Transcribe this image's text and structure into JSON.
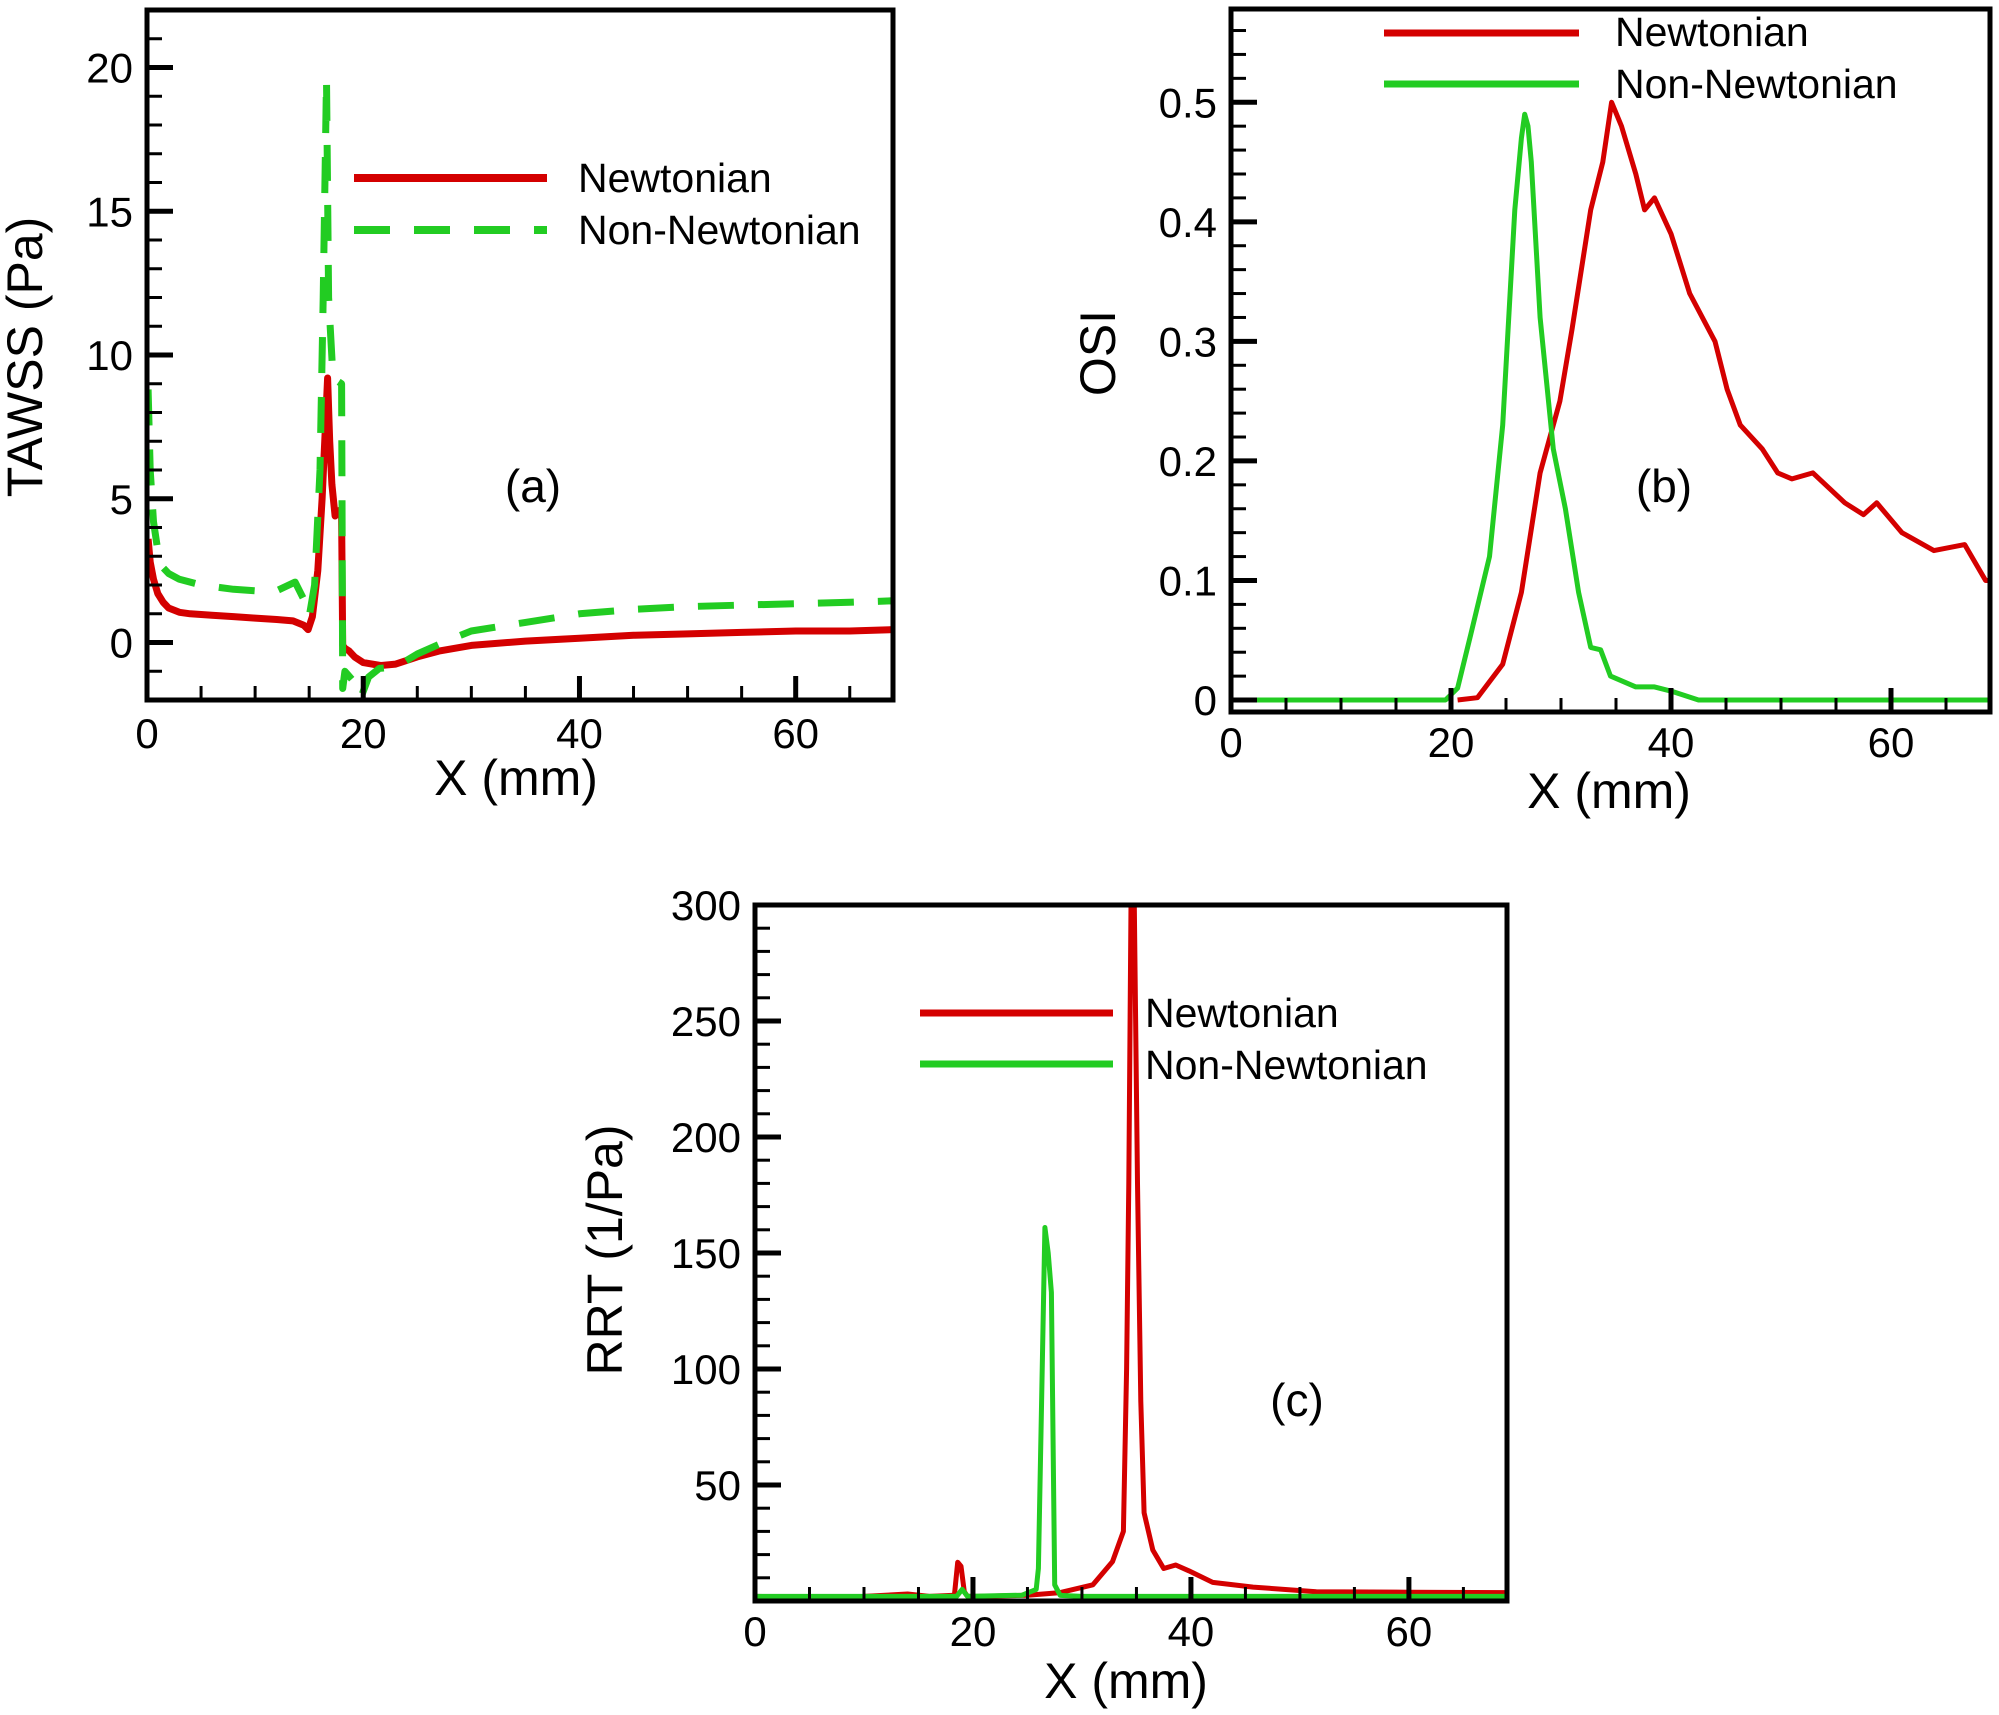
{
  "colors": {
    "newtonian": "#d40000",
    "non_newtonian": "#22cc22"
  },
  "chart_data": [
    {
      "id": "a",
      "type": "line",
      "panel_label": "(a)",
      "title": "",
      "xlabel": "X (mm)",
      "ylabel": "TAWSS (Pa)",
      "xlim": [
        0,
        69
      ],
      "ylim": [
        -2,
        22
      ],
      "xticks": [
        0,
        20,
        40,
        60
      ],
      "xtick_labels": [
        "0",
        "20",
        "40",
        "60"
      ],
      "x_minor_step": 5,
      "yticks": [
        0,
        5,
        10,
        15,
        20
      ],
      "ytick_labels": [
        "0",
        "5",
        "10",
        "15",
        "20"
      ],
      "y_minor_step": 1,
      "grid": false,
      "legend_position": "top-right",
      "series": [
        {
          "name": "Newtonian",
          "color_key": "newtonian",
          "style": "solid",
          "x": [
            0.1,
            0.3,
            0.6,
            1.0,
            1.5,
            2.0,
            3.0,
            4.0,
            6.0,
            8.0,
            10.0,
            12.0,
            13.5,
            14.5,
            14.9,
            15.3,
            15.8,
            16.2,
            16.5,
            16.7,
            16.9,
            17.1,
            17.4,
            17.8,
            18.0,
            18.1,
            18.3,
            18.7,
            19.2,
            20.0,
            21.6,
            23.0,
            25.0,
            27.0,
            30.0,
            35.0,
            40.0,
            45.0,
            50.0,
            55.0,
            60.0,
            65.0,
            69.0
          ],
          "y": [
            3.6,
            2.8,
            2.2,
            1.7,
            1.4,
            1.2,
            1.05,
            1.0,
            0.95,
            0.9,
            0.85,
            0.8,
            0.75,
            0.6,
            0.45,
            0.9,
            2.5,
            5.0,
            7.5,
            9.2,
            7.0,
            5.5,
            4.4,
            4.6,
            4.4,
            -0.1,
            -0.2,
            -0.3,
            -0.5,
            -0.7,
            -0.8,
            -0.75,
            -0.5,
            -0.3,
            -0.1,
            0.05,
            0.15,
            0.25,
            0.3,
            0.35,
            0.4,
            0.4,
            0.45
          ]
        },
        {
          "name": "Non-Newtonian",
          "color_key": "non_newtonian",
          "style": "dashed",
          "x": [
            0.1,
            0.3,
            0.6,
            1.0,
            1.5,
            2.0,
            3.0,
            5.0,
            8.0,
            10.0,
            12.0,
            13.7,
            14.5,
            15.0,
            15.5,
            16.0,
            16.3,
            16.6,
            16.8,
            17.2,
            17.6,
            18.0,
            18.1,
            18.3,
            19.0,
            19.8,
            20.5,
            21.5,
            23.0,
            25.0,
            28.0,
            30.0,
            35.0,
            40.0,
            45.0,
            50.0,
            55.0,
            60.0,
            65.0,
            69.0
          ],
          "y": [
            8.8,
            6.0,
            4.2,
            3.2,
            2.6,
            2.4,
            2.2,
            2.0,
            1.85,
            1.8,
            1.8,
            2.1,
            1.5,
            0.9,
            2.0,
            6.0,
            12.0,
            19.6,
            12.0,
            9.2,
            9.1,
            9.0,
            -1.6,
            -1.0,
            -1.3,
            -1.9,
            -1.2,
            -0.9,
            -0.85,
            -0.4,
            0.1,
            0.4,
            0.7,
            1.0,
            1.15,
            1.25,
            1.3,
            1.35,
            1.4,
            1.45
          ]
        }
      ]
    },
    {
      "id": "b",
      "type": "line",
      "panel_label": "(b)",
      "title": "",
      "xlabel": "X (mm)",
      "ylabel": "OSI",
      "xlim": [
        0,
        69
      ],
      "ylim": [
        -0.01,
        0.578
      ],
      "xticks": [
        0,
        20,
        40,
        60
      ],
      "xtick_labels": [
        "0",
        "20",
        "40",
        "60"
      ],
      "x_minor_step": 5,
      "yticks": [
        0,
        0.1,
        0.2,
        0.3,
        0.4,
        0.5
      ],
      "ytick_labels": [
        "0",
        "0.1",
        "0.2",
        "0.3",
        "0.4",
        "0.5"
      ],
      "y_minor_step": 0.02,
      "grid": false,
      "legend_position": "top",
      "series": [
        {
          "name": "Newtonian",
          "color_key": "newtonian",
          "style": "solid",
          "x": [
            20.6,
            22.4,
            24.7,
            26.4,
            28.1,
            29.9,
            31.0,
            32.7,
            33.8,
            34.6,
            35.5,
            36.8,
            37.6,
            38.5,
            40.0,
            41.7,
            44.0,
            45.1,
            46.3,
            48.3,
            49.7,
            51.0,
            52.9,
            55.8,
            57.5,
            58.7,
            61.0,
            63.9,
            66.7,
            68.6,
            69.0
          ],
          "y": [
            0.0,
            0.002,
            0.03,
            0.09,
            0.19,
            0.25,
            0.31,
            0.41,
            0.45,
            0.5,
            0.48,
            0.44,
            0.41,
            0.42,
            0.39,
            0.34,
            0.3,
            0.26,
            0.23,
            0.21,
            0.19,
            0.185,
            0.19,
            0.165,
            0.155,
            0.165,
            0.14,
            0.125,
            0.13,
            0.1,
            0.1
          ]
        },
        {
          "name": "Non-Newtonian",
          "color_key": "non_newtonian",
          "style": "solid",
          "x": [
            0,
            19.5,
            20.6,
            21.8,
            23.5,
            24.7,
            25.8,
            26.4,
            26.7,
            27.0,
            27.3,
            28.1,
            29.3,
            30.4,
            31.6,
            32.7,
            33.6,
            34.5,
            36.8,
            38.5,
            40.2,
            42.5,
            69.0
          ],
          "y": [
            0.0,
            0.0,
            0.01,
            0.055,
            0.12,
            0.23,
            0.41,
            0.47,
            0.49,
            0.48,
            0.45,
            0.32,
            0.21,
            0.16,
            0.09,
            0.044,
            0.042,
            0.02,
            0.011,
            0.011,
            0.007,
            0.0,
            0.0
          ]
        }
      ]
    },
    {
      "id": "c",
      "type": "line",
      "panel_label": "(c)",
      "title": "",
      "xlabel": "X (mm)",
      "ylabel": "RRT (1/Pa)",
      "xlim": [
        0,
        69
      ],
      "ylim": [
        0,
        300
      ],
      "xticks": [
        0,
        20,
        40,
        60
      ],
      "xtick_labels": [
        "0",
        "20",
        "40",
        "60"
      ],
      "x_minor_step": 5,
      "yticks": [
        50,
        100,
        150,
        200,
        250,
        300
      ],
      "ytick_labels": [
        "50",
        "100",
        "150",
        "200",
        "250",
        "300"
      ],
      "y_minor_step": 10,
      "grid": false,
      "legend_position": "top-center",
      "series": [
        {
          "name": "Newtonian",
          "color_key": "newtonian",
          "style": "solid",
          "x": [
            0,
            5,
            10,
            14,
            16,
            18.3,
            18.6,
            18.9,
            19.2,
            19.5,
            20.5,
            25.0,
            28.0,
            31.0,
            32.8,
            33.8,
            34.1,
            34.3,
            34.5,
            34.8,
            35.1,
            35.4,
            35.7,
            36.5,
            37.5,
            38.6,
            39.8,
            42.0,
            45.7,
            51.5,
            60.0,
            69.0
          ],
          "y": [
            2,
            1.5,
            2,
            3,
            2,
            2.5,
            16.7,
            15,
            4,
            2,
            2,
            2.5,
            3.6,
            7,
            17,
            30,
            100,
            180,
            300,
            300,
            180,
            86,
            38,
            22,
            14,
            15.5,
            13,
            8,
            6,
            4,
            3.8,
            3.6
          ]
        },
        {
          "name": "Non-Newtonian",
          "color_key": "non_newtonian",
          "style": "solid",
          "x": [
            0,
            18.5,
            19.0,
            19.5,
            24.5,
            25.8,
            26.0,
            26.3,
            26.6,
            26.9,
            27.2,
            27.5,
            28.0,
            30.0,
            69.0
          ],
          "y": [
            2,
            2,
            5,
            2,
            2.5,
            5,
            14,
            86,
            161,
            150,
            133,
            7,
            2.4,
            2,
            2
          ]
        }
      ]
    }
  ]
}
